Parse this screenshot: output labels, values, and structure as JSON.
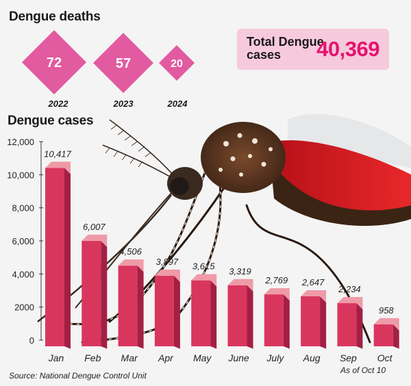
{
  "deaths": {
    "title": "Dengue deaths",
    "items": [
      {
        "year": "2022",
        "value": "72"
      },
      {
        "year": "2023",
        "value": "57"
      },
      {
        "year": "2024",
        "value": "20"
      }
    ]
  },
  "total": {
    "label": "Total Dengue cases",
    "value": "40,369"
  },
  "colors": {
    "accent": "#e6136e",
    "bar_front": "#d9365e",
    "bar_side": "#a41f44",
    "bar_top": "#ef9aa7",
    "diamond": "#e25aa0",
    "box": "#f7c9dc"
  },
  "chart_data": {
    "type": "bar",
    "title": "Dengue cases",
    "categories": [
      "Jan",
      "Feb",
      "Mar",
      "Apr",
      "May",
      "June",
      "July",
      "Aug",
      "Sep",
      "Oct"
    ],
    "values": [
      10417,
      6007,
      4506,
      3897,
      3615,
      3319,
      2769,
      2647,
      2234,
      958
    ],
    "value_labels": [
      "10,417",
      "6,007",
      "4,506",
      "3,897",
      "3,615",
      "3,319",
      "2,769",
      "2,647",
      "2,234",
      "958"
    ],
    "yticks": [
      0,
      2000,
      4000,
      6000,
      8000,
      10000,
      12000
    ],
    "ytick_labels": [
      "0",
      "2000",
      "4,000",
      "6,000",
      "8,000",
      "10,000",
      "12,000"
    ],
    "ylim": [
      0,
      12000
    ],
    "xlabel": "",
    "ylabel": "",
    "note": "As of  Oct 10"
  },
  "source": "Source: National Dengue Control Unit"
}
